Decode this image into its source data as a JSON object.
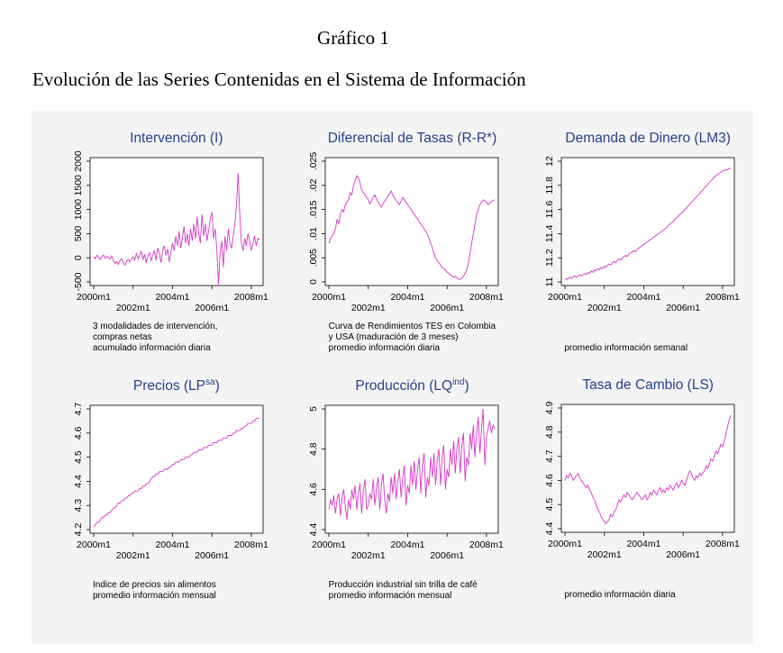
{
  "page": {
    "title": "Gráfico 1",
    "subtitle": "Evolución de las Series Contenidas en el Sistema de Información"
  },
  "colors": {
    "line": "#d935c7",
    "chart_title": "#26418f",
    "panel_bg": "#f4f4f4",
    "axis": "#000000"
  },
  "chart_data": [
    {
      "type": "line",
      "title_parts": [
        {
          "text": "Intervención (I)"
        }
      ],
      "xtick_months": [
        0,
        24,
        48,
        72,
        96
      ],
      "xtick_labels": [
        "2000m1",
        "2002m1",
        "2004m1",
        "2006m1",
        "2008m1"
      ],
      "ylim": [
        -500,
        2000
      ],
      "yticks": [
        -500,
        0,
        500,
        1000,
        1500,
        2000
      ],
      "ytick_labels": [
        "-500",
        "0",
        "500",
        "1000",
        "1500",
        "2000"
      ],
      "note_lines": [
        "3 modalidades de intervención,",
        "compras netas",
        "acumulado información diaria"
      ],
      "values": [
        30,
        -20,
        50,
        10,
        -40,
        20,
        60,
        -10,
        30,
        0,
        -30,
        40,
        -60,
        -120,
        -80,
        -140,
        -60,
        -20,
        -100,
        -150,
        -80,
        -40,
        -90,
        -30,
        20,
        -50,
        90,
        -20,
        60,
        130,
        -40,
        70,
        -110,
        30,
        100,
        -60,
        50,
        150,
        -50,
        200,
        100,
        -100,
        150,
        250,
        50,
        180,
        -80,
        120,
        300,
        150,
        450,
        250,
        550,
        200,
        400,
        650,
        300,
        500,
        250,
        600,
        350,
        700,
        400,
        850,
        500,
        300,
        900,
        450,
        700,
        350,
        550,
        800,
        950,
        400,
        600,
        200,
        -550,
        100,
        350,
        -200,
        450,
        150,
        600,
        300,
        200,
        450,
        700,
        1100,
        1750,
        900,
        300,
        150,
        400,
        250,
        500,
        350,
        150,
        300,
        450,
        250,
        400,
        380
      ]
    },
    {
      "type": "line",
      "title_parts": [
        {
          "text": "Diferencial de Tasas (R-R*)"
        }
      ],
      "xtick_months": [
        0,
        24,
        48,
        72,
        96
      ],
      "xtick_labels": [
        "2000m1",
        "2002m1",
        "2004m1",
        "2006m1",
        "2008m1"
      ],
      "ylim": [
        0,
        0.025
      ],
      "yticks": [
        0,
        0.005,
        0.01,
        0.015,
        0.02,
        0.025
      ],
      "ytick_labels": [
        "0",
        ".005",
        ".01",
        ".015",
        ".02",
        ".025"
      ],
      "note_lines": [
        "Curva de Rendimientos TES en Colombia",
        "y USA  (maduración de 3 meses)",
        "promedio información diaria"
      ],
      "values": [
        0.008,
        0.009,
        0.0095,
        0.01,
        0.011,
        0.013,
        0.012,
        0.014,
        0.015,
        0.0145,
        0.016,
        0.0165,
        0.017,
        0.0185,
        0.018,
        0.02,
        0.021,
        0.022,
        0.0215,
        0.0205,
        0.019,
        0.0185,
        0.018,
        0.0175,
        0.017,
        0.0162,
        0.0168,
        0.0175,
        0.018,
        0.0172,
        0.0165,
        0.016,
        0.0155,
        0.0162,
        0.0168,
        0.0172,
        0.0178,
        0.0183,
        0.0188,
        0.018,
        0.0174,
        0.0169,
        0.0164,
        0.016,
        0.0168,
        0.0175,
        0.017,
        0.0165,
        0.016,
        0.0155,
        0.015,
        0.0145,
        0.014,
        0.0135,
        0.013,
        0.0125,
        0.012,
        0.0115,
        0.011,
        0.0105,
        0.01,
        0.009,
        0.008,
        0.007,
        0.006,
        0.005,
        0.0045,
        0.004,
        0.0035,
        0.003,
        0.0028,
        0.0025,
        0.002,
        0.0018,
        0.0015,
        0.0012,
        0.001,
        0.0012,
        0.0008,
        0.0006,
        0.0005,
        0.0008,
        0.0012,
        0.0018,
        0.0025,
        0.004,
        0.006,
        0.008,
        0.01,
        0.012,
        0.014,
        0.015,
        0.016,
        0.0165,
        0.017,
        0.0168,
        0.0165,
        0.016,
        0.0163,
        0.0166,
        0.0169,
        0.017
      ]
    },
    {
      "type": "line",
      "title_parts": [
        {
          "text": "Demanda de Dinero (LM3)"
        }
      ],
      "xtick_months": [
        0,
        24,
        48,
        72,
        96
      ],
      "xtick_labels": [
        "2000m1",
        "2002m1",
        "2004m1",
        "2006m1",
        "2008m1"
      ],
      "ylim": [
        11,
        12
      ],
      "yticks": [
        11,
        11.2,
        11.4,
        11.6,
        11.8,
        12
      ],
      "ytick_labels": [
        "11",
        "11.2",
        "11.4",
        "11.6",
        "11.8",
        "12"
      ],
      "note_lines": [
        "promedio información semanal"
      ],
      "values": [
        11.03,
        11.02,
        11.03,
        11.04,
        11.03,
        11.04,
        11.05,
        11.04,
        11.05,
        11.06,
        11.05,
        11.06,
        11.07,
        11.06,
        11.08,
        11.07,
        11.09,
        11.08,
        11.1,
        11.09,
        11.11,
        11.1,
        11.12,
        11.11,
        11.13,
        11.12,
        11.14,
        11.15,
        11.14,
        11.16,
        11.17,
        11.16,
        11.18,
        11.19,
        11.18,
        11.2,
        11.21,
        11.22,
        11.21,
        11.23,
        11.24,
        11.25,
        11.26,
        11.25,
        11.27,
        11.28,
        11.29,
        11.3,
        11.31,
        11.32,
        11.33,
        11.34,
        11.35,
        11.36,
        11.37,
        11.38,
        11.39,
        11.4,
        11.41,
        11.42,
        11.43,
        11.44,
        11.45,
        11.47,
        11.48,
        11.49,
        11.5,
        11.52,
        11.53,
        11.54,
        11.56,
        11.57,
        11.58,
        11.6,
        11.61,
        11.63,
        11.64,
        11.66,
        11.67,
        11.69,
        11.7,
        11.72,
        11.73,
        11.75,
        11.76,
        11.78,
        11.79,
        11.81,
        11.82,
        11.84,
        11.85,
        11.87,
        11.88,
        11.89,
        11.9,
        11.91,
        11.92,
        11.92,
        11.93,
        11.93,
        11.94,
        11.94
      ]
    },
    {
      "type": "line",
      "title_parts": [
        {
          "text": "Precios (LP"
        },
        {
          "text": "sa",
          "sup": true
        },
        {
          "text": ")"
        }
      ],
      "xtick_months": [
        0,
        24,
        48,
        72,
        96
      ],
      "xtick_labels": [
        "2000m1",
        "2002m1",
        "2004m1",
        "2006m1",
        "2008m1"
      ],
      "ylim": [
        4.2,
        4.7
      ],
      "yticks": [
        4.2,
        4.3,
        4.4,
        4.5,
        4.6,
        4.7
      ],
      "ytick_labels": [
        "4.2",
        "4.3",
        "4.4",
        "4.5",
        "4.6",
        "4.7"
      ],
      "note_lines": [
        "Indice de precios sin alimentos",
        "promedio información mensual"
      ],
      "values": [
        4.21,
        4.22,
        4.23,
        4.23,
        4.24,
        4.25,
        4.25,
        4.26,
        4.26,
        4.27,
        4.27,
        4.28,
        4.29,
        4.29,
        4.3,
        4.31,
        4.31,
        4.32,
        4.32,
        4.33,
        4.33,
        4.34,
        4.34,
        4.35,
        4.35,
        4.36,
        4.36,
        4.36,
        4.37,
        4.37,
        4.38,
        4.38,
        4.39,
        4.39,
        4.4,
        4.41,
        4.42,
        4.42,
        4.43,
        4.43,
        4.44,
        4.44,
        4.44,
        4.45,
        4.45,
        4.45,
        4.46,
        4.46,
        4.47,
        4.47,
        4.48,
        4.48,
        4.48,
        4.49,
        4.49,
        4.49,
        4.5,
        4.5,
        4.5,
        4.51,
        4.51,
        4.52,
        4.52,
        4.52,
        4.53,
        4.53,
        4.53,
        4.54,
        4.54,
        4.54,
        4.55,
        4.55,
        4.55,
        4.56,
        4.56,
        4.56,
        4.57,
        4.57,
        4.57,
        4.58,
        4.58,
        4.58,
        4.59,
        4.59,
        4.59,
        4.6,
        4.6,
        4.61,
        4.61,
        4.61,
        4.62,
        4.62,
        4.63,
        4.63,
        4.64,
        4.64,
        4.64,
        4.65,
        4.65,
        4.66,
        4.66,
        4.66
      ]
    },
    {
      "type": "line",
      "title_parts": [
        {
          "text": "Producción (LQ"
        },
        {
          "text": "ind",
          "sup": true
        },
        {
          "text": ")"
        }
      ],
      "xtick_months": [
        0,
        24,
        48,
        72,
        96
      ],
      "xtick_labels": [
        "2000m1",
        "2002m1",
        "2004m1",
        "2006m1",
        "2008m1"
      ],
      "ylim": [
        4.4,
        5
      ],
      "yticks": [
        4.4,
        4.6,
        4.8,
        5
      ],
      "ytick_labels": [
        "4.4",
        "4.6",
        "4.8",
        "5"
      ],
      "note_lines": [
        "Producción industrial sin trilla de café",
        "promedio información mensual"
      ],
      "values": [
        4.5,
        4.55,
        4.52,
        4.57,
        4.48,
        4.55,
        4.58,
        4.47,
        4.56,
        4.6,
        4.52,
        4.45,
        4.55,
        4.5,
        4.6,
        4.55,
        4.62,
        4.5,
        4.58,
        4.63,
        4.48,
        4.6,
        4.65,
        4.5,
        4.52,
        4.58,
        4.55,
        4.65,
        4.52,
        4.6,
        4.66,
        4.5,
        4.62,
        4.68,
        4.55,
        4.48,
        4.58,
        4.54,
        4.66,
        4.58,
        4.68,
        4.55,
        4.64,
        4.7,
        4.56,
        4.66,
        4.72,
        4.52,
        4.62,
        4.58,
        4.72,
        4.62,
        4.74,
        4.6,
        4.7,
        4.76,
        4.58,
        4.72,
        4.78,
        4.56,
        4.66,
        4.62,
        4.76,
        4.66,
        4.78,
        4.62,
        4.74,
        4.8,
        4.62,
        4.76,
        4.82,
        4.6,
        4.7,
        4.66,
        4.8,
        4.72,
        4.84,
        4.68,
        4.8,
        4.86,
        4.68,
        4.82,
        4.88,
        4.64,
        4.76,
        4.72,
        4.88,
        4.8,
        4.92,
        4.76,
        4.88,
        4.96,
        4.78,
        4.9,
        5.0,
        4.72,
        4.86,
        4.9,
        4.94,
        4.88,
        4.92,
        4.9
      ]
    },
    {
      "type": "line",
      "title_parts": [
        {
          "text": "Tasa de Cambio (LS)"
        }
      ],
      "xtick_months": [
        0,
        24,
        48,
        72,
        96
      ],
      "xtick_labels": [
        "2000m1",
        "2002m1",
        "2004m1",
        "2006m1",
        "2008m1"
      ],
      "ylim": [
        4.4,
        4.9
      ],
      "yticks": [
        4.4,
        4.5,
        4.6,
        4.7,
        4.8,
        4.9
      ],
      "ytick_labels": [
        "4.4",
        "4.5",
        "4.6",
        "4.7",
        "4.8",
        "4.9"
      ],
      "note_lines": [
        "promedio información diaria"
      ],
      "values": [
        4.6,
        4.62,
        4.61,
        4.63,
        4.62,
        4.6,
        4.61,
        4.62,
        4.63,
        4.61,
        4.6,
        4.59,
        4.58,
        4.57,
        4.58,
        4.56,
        4.55,
        4.53,
        4.52,
        4.5,
        4.48,
        4.47,
        4.45,
        4.44,
        4.43,
        4.42,
        4.43,
        4.44,
        4.46,
        4.45,
        4.47,
        4.48,
        4.5,
        4.52,
        4.51,
        4.53,
        4.54,
        4.53,
        4.55,
        4.54,
        4.53,
        4.52,
        4.53,
        4.54,
        4.55,
        4.54,
        4.53,
        4.52,
        4.53,
        4.54,
        4.52,
        4.53,
        4.55,
        4.54,
        4.56,
        4.55,
        4.54,
        4.56,
        4.57,
        4.55,
        4.56,
        4.55,
        4.57,
        4.56,
        4.58,
        4.57,
        4.56,
        4.58,
        4.59,
        4.57,
        4.58,
        4.6,
        4.59,
        4.58,
        4.6,
        4.62,
        4.64,
        4.63,
        4.61,
        4.6,
        4.62,
        4.61,
        4.63,
        4.62,
        4.63,
        4.64,
        4.66,
        4.65,
        4.67,
        4.69,
        4.68,
        4.7,
        4.72,
        4.71,
        4.73,
        4.75,
        4.74,
        4.76,
        4.79,
        4.82,
        4.85,
        4.87
      ]
    }
  ]
}
